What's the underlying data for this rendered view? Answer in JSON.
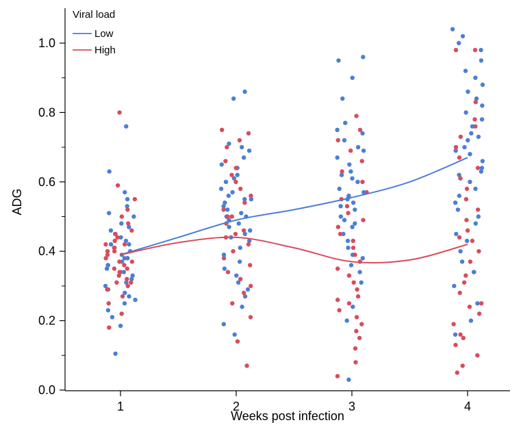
{
  "chart_data": {
    "type": "scatter",
    "xlabel": "Weeks post infection",
    "ylabel": "ADG",
    "categories": [
      "1",
      "2",
      "3",
      "4"
    ],
    "x_ticks": [
      1,
      2,
      3,
      4
    ],
    "y_ticks": [
      "0.0",
      "0.2",
      "0.4",
      "0.6",
      "0.8",
      "1.0"
    ],
    "ylim": [
      0,
      1.0
    ],
    "xlim": [
      0.5,
      4.5
    ],
    "grid": false,
    "legend": {
      "title": "Viral load",
      "placement": "top-left"
    },
    "series": [
      {
        "name": "Low",
        "color": "#4a7fd6",
        "trend": [
          [
            1,
            0.39
          ],
          [
            1.5,
            0.44
          ],
          [
            2,
            0.49
          ],
          [
            2.5,
            0.52
          ],
          [
            3,
            0.555
          ],
          [
            3.5,
            0.6
          ],
          [
            4,
            0.67
          ]
        ],
        "points": [
          [
            1,
            0.105
          ],
          [
            1,
            0.185
          ],
          [
            1,
            0.21
          ],
          [
            1,
            0.23
          ],
          [
            1,
            0.25
          ],
          [
            1,
            0.26
          ],
          [
            1,
            0.27
          ],
          [
            1,
            0.28
          ],
          [
            1,
            0.29
          ],
          [
            1,
            0.3
          ],
          [
            1,
            0.31
          ],
          [
            1,
            0.32
          ],
          [
            1,
            0.33
          ],
          [
            1,
            0.34
          ],
          [
            1,
            0.35
          ],
          [
            1,
            0.36
          ],
          [
            1,
            0.37
          ],
          [
            1,
            0.38
          ],
          [
            1,
            0.39
          ],
          [
            1,
            0.4
          ],
          [
            1,
            0.41
          ],
          [
            1,
            0.42
          ],
          [
            1,
            0.43
          ],
          [
            1,
            0.44
          ],
          [
            1,
            0.45
          ],
          [
            1,
            0.46
          ],
          [
            1,
            0.47
          ],
          [
            1,
            0.48
          ],
          [
            1,
            0.5
          ],
          [
            1,
            0.51
          ],
          [
            1,
            0.53
          ],
          [
            1,
            0.55
          ],
          [
            1,
            0.57
          ],
          [
            1,
            0.63
          ],
          [
            1,
            0.76
          ],
          [
            1,
            0.34
          ],
          [
            1,
            0.36
          ],
          [
            1,
            0.38
          ],
          [
            1,
            0.4
          ],
          [
            1,
            0.42
          ],
          [
            2,
            0.16
          ],
          [
            2,
            0.19
          ],
          [
            2,
            0.24
          ],
          [
            2,
            0.27
          ],
          [
            2,
            0.29
          ],
          [
            2,
            0.31
          ],
          [
            2,
            0.33
          ],
          [
            2,
            0.35
          ],
          [
            2,
            0.37
          ],
          [
            2,
            0.39
          ],
          [
            2,
            0.41
          ],
          [
            2,
            0.43
          ],
          [
            2,
            0.45
          ],
          [
            2,
            0.46
          ],
          [
            2,
            0.47
          ],
          [
            2,
            0.48
          ],
          [
            2,
            0.49
          ],
          [
            2,
            0.5
          ],
          [
            2,
            0.51
          ],
          [
            2,
            0.52
          ],
          [
            2,
            0.53
          ],
          [
            2,
            0.54
          ],
          [
            2,
            0.55
          ],
          [
            2,
            0.56
          ],
          [
            2,
            0.57
          ],
          [
            2,
            0.58
          ],
          [
            2,
            0.6
          ],
          [
            2,
            0.61
          ],
          [
            2,
            0.62
          ],
          [
            2,
            0.64
          ],
          [
            2,
            0.65
          ],
          [
            2,
            0.67
          ],
          [
            2,
            0.69
          ],
          [
            2,
            0.7
          ],
          [
            2,
            0.71
          ],
          [
            2,
            0.84
          ],
          [
            2,
            0.86
          ],
          [
            2,
            0.44
          ],
          [
            2,
            0.5
          ],
          [
            2,
            0.55
          ],
          [
            3,
            0.03
          ],
          [
            3,
            0.2
          ],
          [
            3,
            0.24
          ],
          [
            3,
            0.31
          ],
          [
            3,
            0.34
          ],
          [
            3,
            0.36
          ],
          [
            3,
            0.38
          ],
          [
            3,
            0.39
          ],
          [
            3,
            0.41
          ],
          [
            3,
            0.43
          ],
          [
            3,
            0.45
          ],
          [
            3,
            0.47
          ],
          [
            3,
            0.49
          ],
          [
            3,
            0.5
          ],
          [
            3,
            0.52
          ],
          [
            3,
            0.53
          ],
          [
            3,
            0.55
          ],
          [
            3,
            0.56
          ],
          [
            3,
            0.58
          ],
          [
            3,
            0.6
          ],
          [
            3,
            0.61
          ],
          [
            3,
            0.63
          ],
          [
            3,
            0.65
          ],
          [
            3,
            0.67
          ],
          [
            3,
            0.69
          ],
          [
            3,
            0.7
          ],
          [
            3,
            0.72
          ],
          [
            3,
            0.74
          ],
          [
            3,
            0.75
          ],
          [
            3,
            0.77
          ],
          [
            3,
            0.84
          ],
          [
            3,
            0.9
          ],
          [
            3,
            0.95
          ],
          [
            3,
            0.96
          ],
          [
            3,
            0.54
          ],
          [
            3,
            0.57
          ],
          [
            3,
            0.62
          ],
          [
            3,
            0.48
          ],
          [
            4,
            0.16
          ],
          [
            4,
            0.2
          ],
          [
            4,
            0.25
          ],
          [
            4,
            0.3
          ],
          [
            4,
            0.34
          ],
          [
            4,
            0.37
          ],
          [
            4,
            0.4
          ],
          [
            4,
            0.43
          ],
          [
            4,
            0.45
          ],
          [
            4,
            0.48
          ],
          [
            4,
            0.5
          ],
          [
            4,
            0.52
          ],
          [
            4,
            0.54
          ],
          [
            4,
            0.56
          ],
          [
            4,
            0.58
          ],
          [
            4,
            0.6
          ],
          [
            4,
            0.62
          ],
          [
            4,
            0.64
          ],
          [
            4,
            0.66
          ],
          [
            4,
            0.68
          ],
          [
            4,
            0.7
          ],
          [
            4,
            0.72
          ],
          [
            4,
            0.74
          ],
          [
            4,
            0.76
          ],
          [
            4,
            0.78
          ],
          [
            4,
            0.8
          ],
          [
            4,
            0.82
          ],
          [
            4,
            0.84
          ],
          [
            4,
            0.86
          ],
          [
            4,
            0.88
          ],
          [
            4,
            0.9
          ],
          [
            4,
            0.92
          ],
          [
            4,
            0.95
          ],
          [
            4,
            0.98
          ],
          [
            4,
            1.0
          ],
          [
            4,
            1.02
          ],
          [
            4,
            1.04
          ],
          [
            4,
            0.63
          ],
          [
            4,
            0.69
          ],
          [
            4,
            0.73
          ]
        ]
      },
      {
        "name": "High",
        "color": "#d94c5c",
        "trend": [
          [
            1,
            0.39
          ],
          [
            1.5,
            0.425
          ],
          [
            2,
            0.44
          ],
          [
            2.5,
            0.41
          ],
          [
            3,
            0.37
          ],
          [
            3.5,
            0.375
          ],
          [
            4,
            0.42
          ]
        ],
        "points": [
          [
            1,
            0.18
          ],
          [
            1,
            0.22
          ],
          [
            1,
            0.25
          ],
          [
            1,
            0.27
          ],
          [
            1,
            0.29
          ],
          [
            1,
            0.3
          ],
          [
            1,
            0.31
          ],
          [
            1,
            0.32
          ],
          [
            1,
            0.33
          ],
          [
            1,
            0.34
          ],
          [
            1,
            0.35
          ],
          [
            1,
            0.36
          ],
          [
            1,
            0.37
          ],
          [
            1,
            0.38
          ],
          [
            1,
            0.39
          ],
          [
            1,
            0.4
          ],
          [
            1,
            0.41
          ],
          [
            1,
            0.42
          ],
          [
            1,
            0.43
          ],
          [
            1,
            0.44
          ],
          [
            1,
            0.45
          ],
          [
            1,
            0.46
          ],
          [
            1,
            0.48
          ],
          [
            1,
            0.5
          ],
          [
            1,
            0.52
          ],
          [
            1,
            0.55
          ],
          [
            1,
            0.59
          ],
          [
            1,
            0.8
          ],
          [
            1,
            0.31
          ],
          [
            1,
            0.35
          ],
          [
            1,
            0.38
          ],
          [
            1,
            0.4
          ],
          [
            1,
            0.42
          ],
          [
            1,
            0.37
          ],
          [
            2,
            0.07
          ],
          [
            2,
            0.14
          ],
          [
            2,
            0.21
          ],
          [
            2,
            0.25
          ],
          [
            2,
            0.28
          ],
          [
            2,
            0.3
          ],
          [
            2,
            0.32
          ],
          [
            2,
            0.34
          ],
          [
            2,
            0.36
          ],
          [
            2,
            0.38
          ],
          [
            2,
            0.4
          ],
          [
            2,
            0.42
          ],
          [
            2,
            0.44
          ],
          [
            2,
            0.46
          ],
          [
            2,
            0.48
          ],
          [
            2,
            0.5
          ],
          [
            2,
            0.52
          ],
          [
            2,
            0.54
          ],
          [
            2,
            0.56
          ],
          [
            2,
            0.58
          ],
          [
            2,
            0.6
          ],
          [
            2,
            0.62
          ],
          [
            2,
            0.64
          ],
          [
            2,
            0.66
          ],
          [
            2,
            0.7
          ],
          [
            2,
            0.72
          ],
          [
            2,
            0.74
          ],
          [
            2,
            0.75
          ],
          [
            2,
            0.45
          ],
          [
            2,
            0.5
          ],
          [
            3,
            0.04
          ],
          [
            3,
            0.08
          ],
          [
            3,
            0.12
          ],
          [
            3,
            0.15
          ],
          [
            3,
            0.17
          ],
          [
            3,
            0.19
          ],
          [
            3,
            0.21
          ],
          [
            3,
            0.23
          ],
          [
            3,
            0.25
          ],
          [
            3,
            0.27
          ],
          [
            3,
            0.29
          ],
          [
            3,
            0.31
          ],
          [
            3,
            0.33
          ],
          [
            3,
            0.35
          ],
          [
            3,
            0.37
          ],
          [
            3,
            0.39
          ],
          [
            3,
            0.41
          ],
          [
            3,
            0.43
          ],
          [
            3,
            0.45
          ],
          [
            3,
            0.47
          ],
          [
            3,
            0.49
          ],
          [
            3,
            0.51
          ],
          [
            3,
            0.53
          ],
          [
            3,
            0.55
          ],
          [
            3,
            0.57
          ],
          [
            3,
            0.6
          ],
          [
            3,
            0.63
          ],
          [
            3,
            0.66
          ],
          [
            3,
            0.69
          ],
          [
            3,
            0.72
          ],
          [
            3,
            0.75
          ],
          [
            3,
            0.79
          ],
          [
            3,
            0.26
          ],
          [
            4,
            0.05
          ],
          [
            4,
            0.07
          ],
          [
            4,
            0.1
          ],
          [
            4,
            0.13
          ],
          [
            4,
            0.16
          ],
          [
            4,
            0.19
          ],
          [
            4,
            0.22
          ],
          [
            4,
            0.25
          ],
          [
            4,
            0.28
          ],
          [
            4,
            0.31
          ],
          [
            4,
            0.34
          ],
          [
            4,
            0.37
          ],
          [
            4,
            0.4
          ],
          [
            4,
            0.43
          ],
          [
            4,
            0.46
          ],
          [
            4,
            0.49
          ],
          [
            4,
            0.52
          ],
          [
            4,
            0.55
          ],
          [
            4,
            0.58
          ],
          [
            4,
            0.61
          ],
          [
            4,
            0.64
          ],
          [
            4,
            0.67
          ],
          [
            4,
            0.7
          ],
          [
            4,
            0.73
          ],
          [
            4,
            0.76
          ],
          [
            4,
            0.78
          ],
          [
            4,
            0.83
          ],
          [
            4,
            0.98
          ],
          [
            4,
            0.98
          ],
          [
            4,
            0.15
          ],
          [
            4,
            0.24
          ],
          [
            4,
            0.33
          ],
          [
            4,
            0.44
          ]
        ]
      }
    ]
  }
}
